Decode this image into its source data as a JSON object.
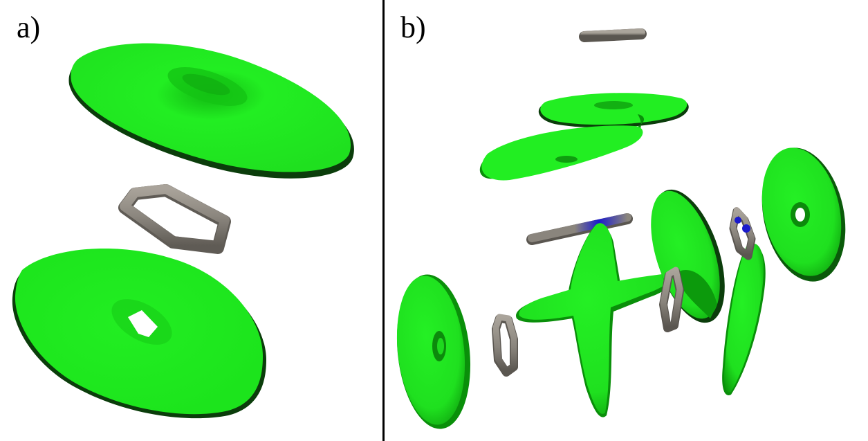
{
  "panel_a": {
    "label": "a)"
  },
  "panel_b": {
    "label": "b)"
  },
  "colors": {
    "surface": "#22ee22",
    "surface_shade": "#0a8f0a",
    "surface_edge": "#0b3d0b",
    "carbon": "#8a857d",
    "nitrogen": "#1a1acc",
    "background": "#ffffff",
    "divider": "#000000"
  },
  "icons": [
    "green-isosurface-torus",
    "gray-benzene-ring",
    "blue-nitrogen-atom"
  ]
}
